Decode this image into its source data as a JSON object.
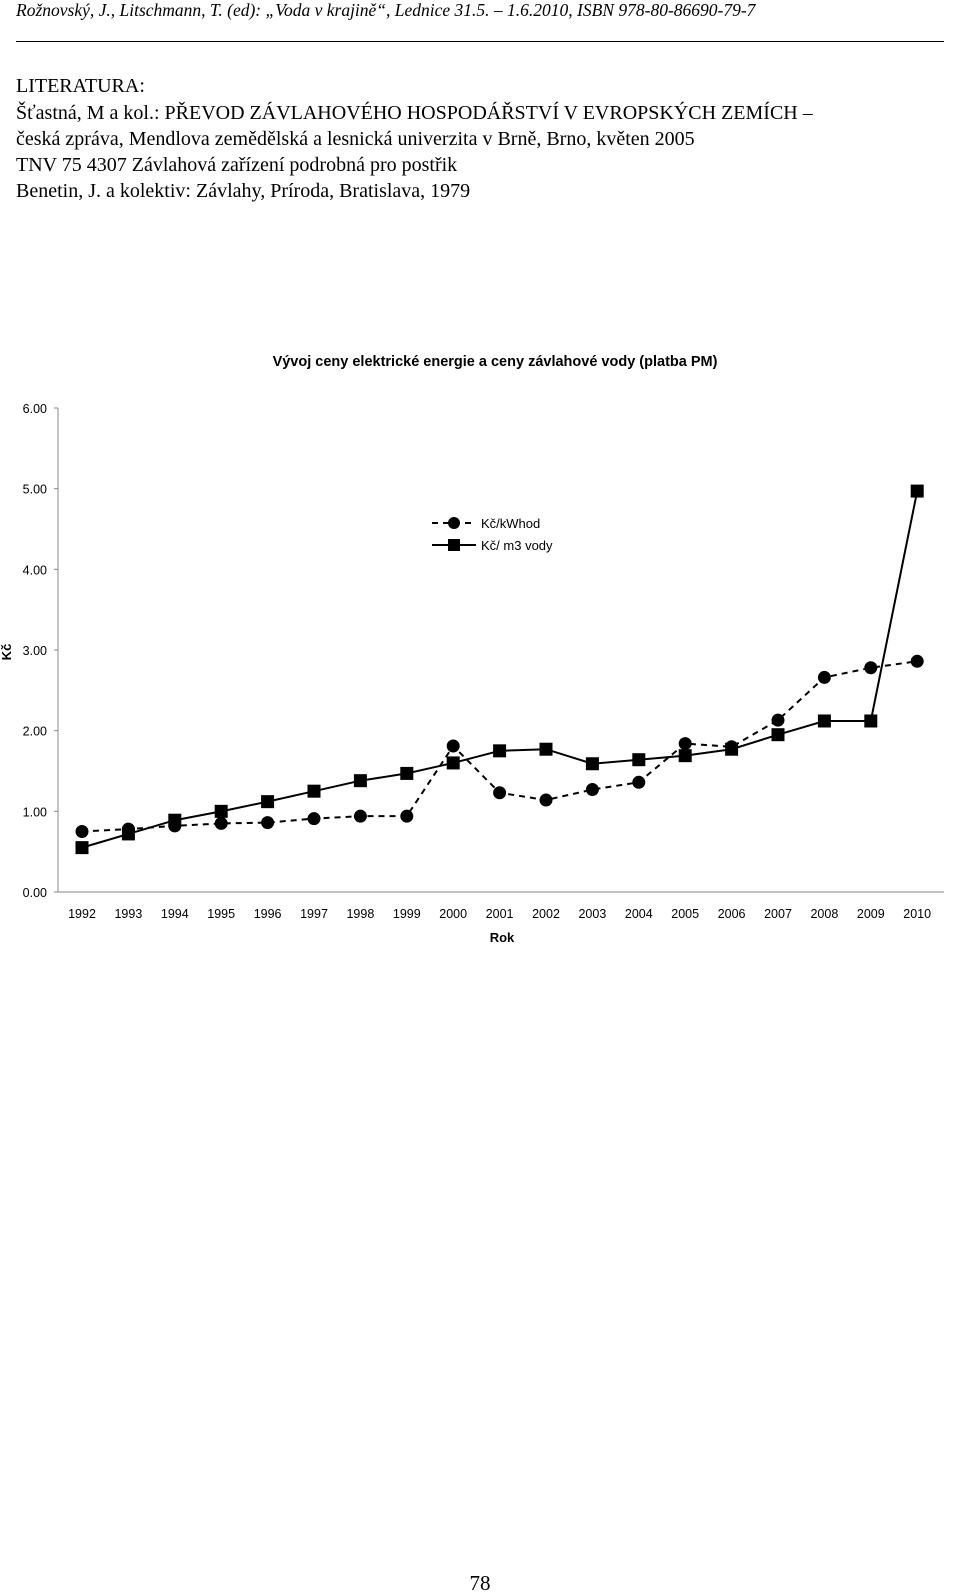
{
  "header": {
    "citation": "Rožnovský, J., Litschmann, T. (ed): „Voda v krajině“, Lednice 31.5. – 1.6.2010, ISBN 978-80-86690-79-7"
  },
  "literature": {
    "heading": "LITERATURA:",
    "references": [
      "Šťastná, M a kol.: PŘEVOD ZÁVLAHOVÉHO HOSPODÁŘSTVÍ V EVROPSKÝCH ZEMÍCH –",
      "česká zpráva, Mendlova zemědělská a lesnická univerzita v Brně, Brno, květen 2005",
      "TNV 75 4307 Závlahová zařízení podrobná pro postřik",
      "Benetin, J. a kolektiv: Závlahy, Príroda, Bratislava, 1979"
    ]
  },
  "chart_data": {
    "type": "line",
    "title": "Vývoj ceny elektrické energie a ceny závlahové vody (platba PM)",
    "xlabel": "Rok",
    "ylabel": "Kč",
    "ylim": [
      0,
      6
    ],
    "yticks": [
      "0.00",
      "1.00",
      "2.00",
      "3.00",
      "4.00",
      "5.00",
      "6.00"
    ],
    "grid": false,
    "legend_position": "center-right",
    "categories": [
      "1992",
      "1993",
      "1994",
      "1995",
      "1996",
      "1997",
      "1998",
      "1999",
      "2000",
      "2001",
      "2002",
      "2003",
      "2004",
      "2005",
      "2006",
      "2007",
      "2008",
      "2009",
      "2010"
    ],
    "series": [
      {
        "name": "Kč/kWhod",
        "marker": "circle",
        "line": "dashed",
        "values": [
          0.75,
          0.78,
          0.82,
          0.85,
          0.86,
          0.91,
          0.94,
          0.94,
          1.81,
          1.23,
          1.14,
          1.27,
          1.36,
          1.84,
          1.8,
          2.13,
          2.66,
          2.78,
          2.86
        ]
      },
      {
        "name": "Kč/ m3 vody",
        "marker": "square",
        "line": "solid",
        "values": [
          0.55,
          0.72,
          0.89,
          1.0,
          1.12,
          1.25,
          1.38,
          1.47,
          1.6,
          1.75,
          1.77,
          1.59,
          1.64,
          1.69,
          1.77,
          1.95,
          2.12,
          2.12,
          4.97
        ]
      }
    ],
    "colors": {
      "lines": "#000000",
      "background": "#ffffff"
    }
  },
  "footer": {
    "page_number": "78"
  }
}
